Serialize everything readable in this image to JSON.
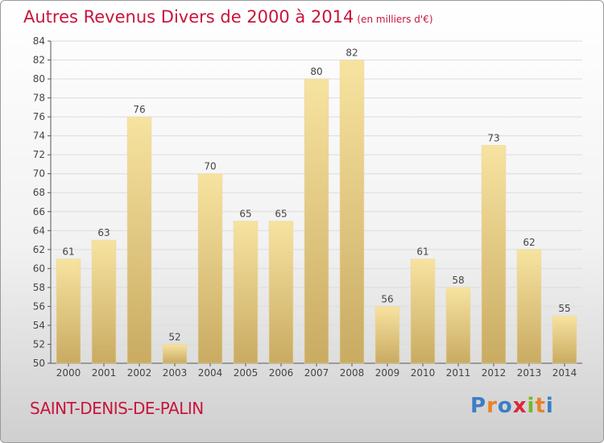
{
  "title": "Autres Revenus Divers de 2000 à 2014",
  "unit": "(en milliers d'€)",
  "commune": "SAINT-DENIS-DE-PALIN",
  "logo": {
    "letters": [
      "P",
      "r",
      "o",
      "x",
      "i",
      "t",
      "i"
    ],
    "colors": [
      "#3a7ec6",
      "#e8822a",
      "#3a7ec6",
      "#d9293a",
      "#76b72a",
      "#e8822a",
      "#3a7ec6"
    ]
  },
  "colors": {
    "bar_light": "#f7e3a0",
    "bar_dark": "#c9ab62",
    "accent": "#c8153c"
  },
  "chart_data": {
    "type": "bar",
    "title": "Autres Revenus Divers de 2000 à 2014",
    "categories": [
      "2000",
      "2001",
      "2002",
      "2003",
      "2004",
      "2005",
      "2006",
      "2007",
      "2008",
      "2009",
      "2010",
      "2011",
      "2012",
      "2013",
      "2014"
    ],
    "values": [
      61,
      63,
      76,
      52,
      70,
      65,
      65,
      80,
      82,
      56,
      61,
      58,
      73,
      62,
      55
    ],
    "ylim": [
      50,
      84
    ],
    "yticks": [
      50,
      52,
      54,
      56,
      58,
      60,
      62,
      64,
      66,
      68,
      70,
      72,
      74,
      76,
      78,
      80,
      82,
      84
    ],
    "grid": true
  }
}
